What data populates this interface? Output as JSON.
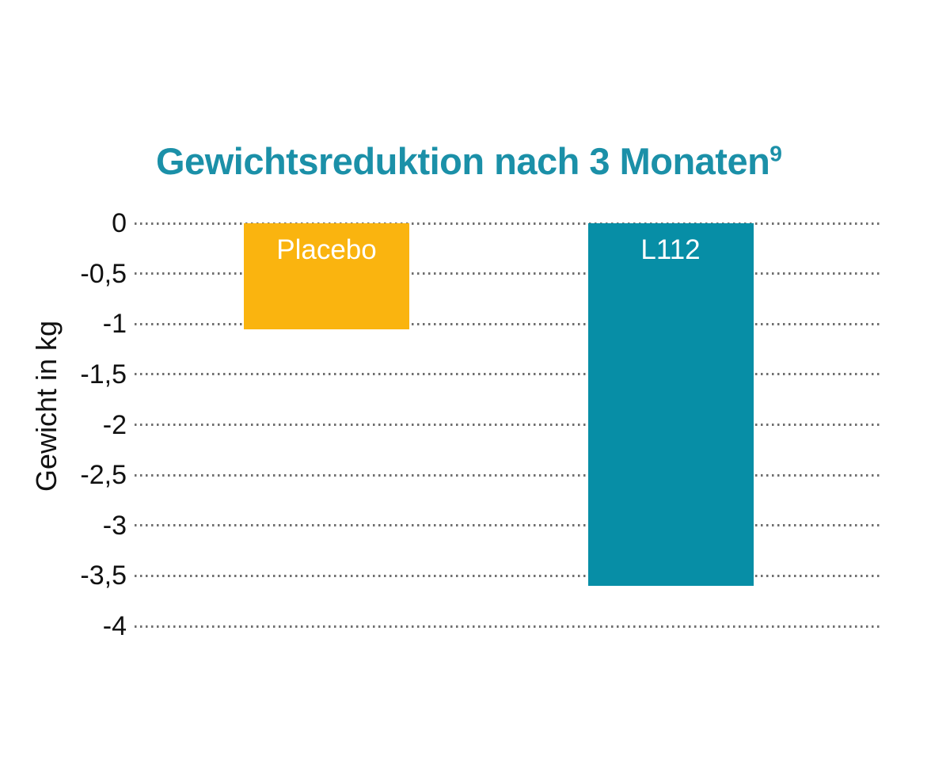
{
  "chart_data": {
    "type": "bar",
    "title": "Gewichtsreduktion nach 3 Monaten",
    "title_superscript": "9",
    "title_color": "#1b90a8",
    "xlabel": "",
    "ylabel": "Gewicht in kg",
    "categories": [
      "Placebo",
      "L112"
    ],
    "values": [
      -1.05,
      -3.6
    ],
    "bar_colors": [
      "#fab40f",
      "#078ea6"
    ],
    "bar_label_color": "#ffffff",
    "bar_labels_position": "inside-top",
    "ylim": [
      0,
      -4
    ],
    "yticks": [
      0,
      -0.5,
      -1,
      -1.5,
      -2,
      -2.5,
      -3,
      -3.5,
      -4
    ],
    "ytick_labels": [
      "0",
      "-0,5",
      "-1",
      "-1,5",
      "-2",
      "-2,5",
      "-3",
      "-3,5",
      "-4"
    ],
    "grid": "horizontal-dotted",
    "grid_color": "#6f6f6f",
    "legend_position": "none",
    "background_color": "#ffffff"
  }
}
